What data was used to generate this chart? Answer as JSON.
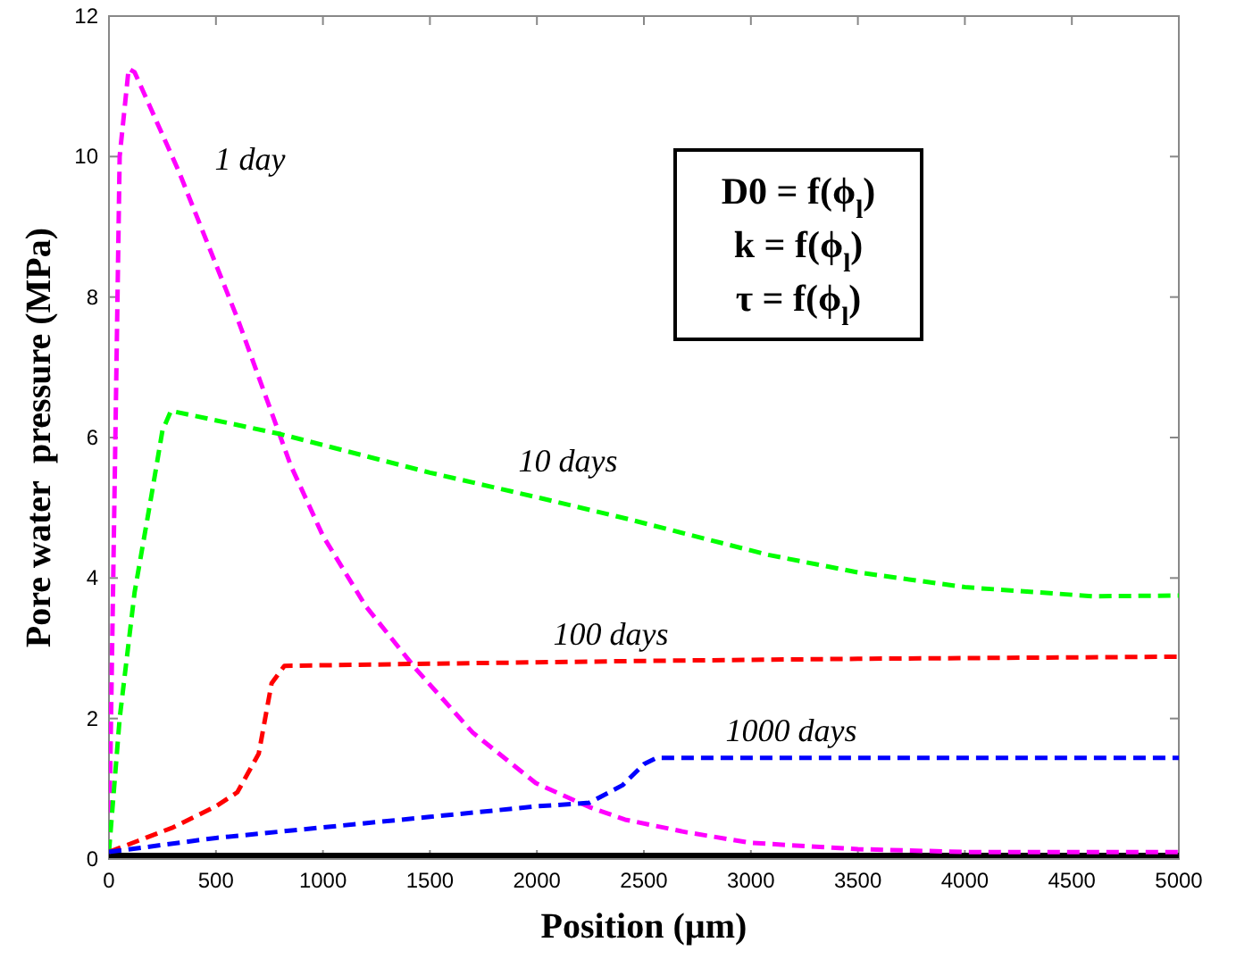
{
  "chart_data": {
    "type": "line",
    "xlabel": "Position (µm)",
    "ylabel": "Pore water  pressure (MPa)",
    "xlim": [
      0,
      5000
    ],
    "xticks": [
      0,
      500,
      1000,
      1500,
      2000,
      2500,
      3000,
      3500,
      4000,
      4500,
      5000
    ],
    "ylim": [
      0,
      12
    ],
    "yticks": [
      0,
      2,
      4,
      6,
      8,
      10,
      12
    ],
    "grid": false,
    "marker": "none",
    "line_style": "dashed",
    "series": [
      {
        "color": "#000000",
        "line_style": "solid",
        "x": [
          0,
          5000
        ],
        "values": [
          0.05,
          0.05
        ]
      },
      {
        "name": "1 day",
        "color": "#ff00ff",
        "x": [
          0,
          20,
          50,
          92,
          120,
          325,
          600,
          850,
          1000,
          1200,
          1436,
          1700,
          1995,
          2245,
          2412,
          2700,
          3000,
          3500,
          4000,
          5000
        ],
        "values": [
          0.1,
          4,
          10,
          11.25,
          11.2,
          9.8,
          7.7,
          5.6,
          4.6,
          3.6,
          2.7,
          1.8,
          1.08,
          0.74,
          0.56,
          0.38,
          0.23,
          0.14,
          0.1,
          0.1
        ]
      },
      {
        "name": "10 days",
        "color": "#00ff00",
        "x": [
          0,
          50,
          120,
          200,
          250,
          290,
          800,
          1500,
          2000,
          2412,
          3080,
          3500,
          4000,
          4600,
          5000
        ],
        "values": [
          0.1,
          2,
          3.8,
          5.2,
          6.1,
          6.38,
          6.05,
          5.5,
          5.15,
          4.85,
          4.33,
          4.08,
          3.87,
          3.74,
          3.75
        ]
      },
      {
        "name": "100 days",
        "color": "#ff0000",
        "x": [
          0,
          300,
          500,
          600,
          700,
          760,
          820,
          1500,
          2500,
          3500,
          5000
        ],
        "values": [
          0.1,
          0.45,
          0.75,
          0.95,
          1.5,
          2.5,
          2.75,
          2.78,
          2.82,
          2.85,
          2.88
        ]
      },
      {
        "name": "1000 days",
        "color": "#0000ff",
        "x": [
          0,
          500,
          1000,
          1500,
          2000,
          2245,
          2400,
          2500,
          2560,
          5000
        ],
        "values": [
          0.1,
          0.3,
          0.45,
          0.6,
          0.75,
          0.8,
          1.05,
          1.35,
          1.44,
          1.44
        ]
      }
    ],
    "annotations": [
      "D0 = f(ϕ$_{l}$)",
      "k = f(ϕ$_{l}$)",
      "τ = f(ϕ$_{l}$)"
    ]
  }
}
